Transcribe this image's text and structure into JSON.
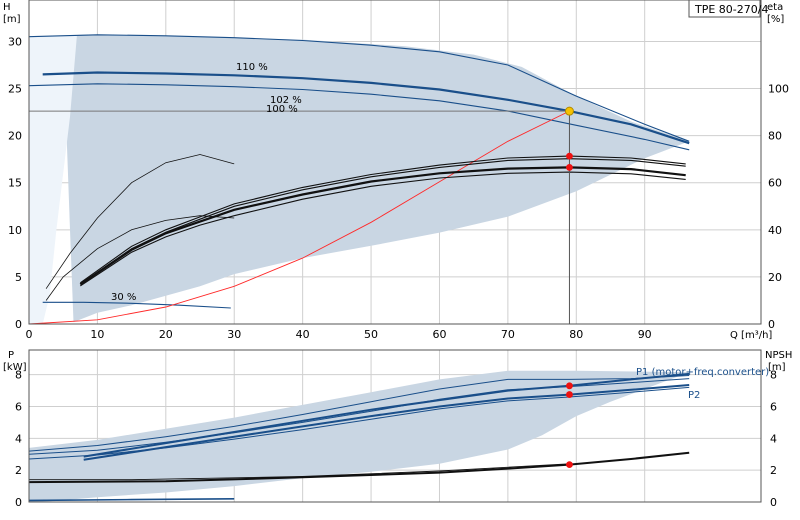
{
  "model_box": "TPE 80-270/4",
  "chart_data": [
    {
      "type": "line",
      "name": "head",
      "x_axis": {
        "label": "Q [m³/h]",
        "ticks": [
          0,
          10,
          20,
          30,
          40,
          50,
          60,
          70,
          80,
          90
        ],
        "range": [
          0,
          107
        ]
      },
      "y_axis_left": {
        "label_line1": "H",
        "label_line2": "[m]",
        "ticks": [
          0,
          5,
          10,
          15,
          20,
          25,
          30
        ],
        "range": [
          0,
          34.4
        ]
      },
      "y_axis_right": {
        "label_line1": "eta",
        "label_line2": "[%]",
        "ticks": [
          0,
          20,
          40,
          60,
          80,
          100
        ],
        "range": [
          0,
          137.6
        ]
      },
      "grid": true,
      "area_upper": [
        [
          0,
          30.5
        ],
        [
          8,
          30.7
        ],
        [
          20,
          30.6
        ],
        [
          40,
          30.2
        ],
        [
          55,
          29.5
        ],
        [
          65,
          28.6
        ],
        [
          72,
          27.3
        ],
        [
          80,
          24.2
        ],
        [
          88,
          21.5
        ],
        [
          96.5,
          19.4
        ]
      ],
      "area_lower": [
        [
          96.5,
          19.4
        ],
        [
          90,
          17.6
        ],
        [
          80,
          14.1
        ],
        [
          70,
          11.4
        ],
        [
          60,
          9.7
        ],
        [
          50,
          8.3
        ],
        [
          40,
          7.0
        ],
        [
          30,
          5.3
        ],
        [
          25,
          4.0
        ],
        [
          20,
          3.0
        ],
        [
          15,
          2.0
        ],
        [
          10,
          1.2
        ],
        [
          6.5,
          0.2
        ]
      ],
      "area_left": [
        [
          6.5,
          0.2
        ],
        [
          6,
          10
        ],
        [
          5.5,
          20
        ],
        [
          5,
          30.5
        ]
      ],
      "light_area": [
        [
          0,
          30.5
        ],
        [
          7,
          30.6
        ],
        [
          6,
          22
        ],
        [
          4,
          10
        ],
        [
          3,
          3
        ],
        [
          2,
          0
        ],
        [
          0,
          0
        ]
      ],
      "series": [
        {
          "name": "110 %",
          "kind": "speed",
          "points": [
            [
              0,
              30.5
            ],
            [
              10,
              30.7
            ],
            [
              20,
              30.6
            ],
            [
              30,
              30.4
            ],
            [
              40,
              30.1
            ],
            [
              50,
              29.6
            ],
            [
              60,
              28.9
            ],
            [
              70,
              27.5
            ],
            [
              80,
              24.2
            ],
            [
              90,
              21.2
            ],
            [
              96.5,
              19.4
            ]
          ]
        },
        {
          "name": "102 %",
          "kind": "speed",
          "bold": true,
          "points": [
            [
              2,
              26.5
            ],
            [
              10,
              26.7
            ],
            [
              20,
              26.6
            ],
            [
              30,
              26.4
            ],
            [
              40,
              26.1
            ],
            [
              50,
              25.6
            ],
            [
              60,
              24.9
            ],
            [
              70,
              23.8
            ],
            [
              79,
              22.6
            ],
            [
              88,
              21.2
            ],
            [
              96.5,
              19.2
            ]
          ]
        },
        {
          "name": "100 %",
          "kind": "speed",
          "points": [
            [
              0,
              25.3
            ],
            [
              10,
              25.5
            ],
            [
              20,
              25.4
            ],
            [
              30,
              25.2
            ],
            [
              40,
              24.9
            ],
            [
              50,
              24.4
            ],
            [
              60,
              23.7
            ],
            [
              70,
              22.6
            ],
            [
              80,
              21.1
            ],
            [
              90,
              19.6
            ],
            [
              96.5,
              18.5
            ]
          ]
        },
        {
          "name": "30 %",
          "kind": "speed",
          "points": [
            [
              2,
              2.3
            ],
            [
              8,
              2.3
            ],
            [
              15,
              2.2
            ],
            [
              22,
              2.0
            ],
            [
              29.5,
              1.7
            ]
          ]
        },
        {
          "name": "",
          "kind": "system",
          "points": [
            [
              0,
              0
            ],
            [
              10,
              0.45
            ],
            [
              20,
              1.8
            ],
            [
              30,
              4.0
            ],
            [
              40,
              7.0
            ],
            [
              50,
              10.8
            ],
            [
              60,
              15.1
            ],
            [
              70,
              19.4
            ],
            [
              79,
              22.6
            ]
          ]
        },
        {
          "name": "",
          "kind": "eta",
          "points": [
            [
              7.5,
              17.5
            ],
            [
              15,
              33
            ],
            [
              20,
              40
            ],
            [
              25,
              45.5
            ],
            [
              30,
              51
            ],
            [
              40,
              58
            ],
            [
              50,
              63.5
            ],
            [
              60,
              67.5
            ],
            [
              70,
              70.5
            ],
            [
              79,
              71.3
            ],
            [
              88,
              70.5
            ],
            [
              96,
              68
            ]
          ]
        },
        {
          "name": "",
          "kind": "eta",
          "points": [
            [
              7.5,
              17.0
            ],
            [
              15,
              32
            ],
            [
              20,
              39
            ],
            [
              25,
              44.5
            ],
            [
              30,
              50
            ],
            [
              40,
              57
            ],
            [
              50,
              62.5
            ],
            [
              60,
              66.5
            ],
            [
              70,
              69.5
            ],
            [
              79,
              70.2
            ],
            [
              88,
              69.5
            ],
            [
              96,
              67
            ]
          ]
        },
        {
          "name": "",
          "kind": "eta-bold",
          "points": [
            [
              7.5,
              16.8
            ],
            [
              15,
              31.5
            ],
            [
              20,
              38.5
            ],
            [
              25,
              43.5
            ],
            [
              30,
              48.5
            ],
            [
              40,
              55
            ],
            [
              50,
              60.5
            ],
            [
              60,
              64
            ],
            [
              70,
              66
            ],
            [
              79,
              66.5
            ],
            [
              88,
              65.8
            ],
            [
              96,
              63.2
            ]
          ]
        },
        {
          "name": "",
          "kind": "eta",
          "points": [
            [
              7.5,
              16.2
            ],
            [
              15,
              30.5
            ],
            [
              20,
              37
            ],
            [
              25,
              42
            ],
            [
              30,
              46
            ],
            [
              40,
              53
            ],
            [
              50,
              58.5
            ],
            [
              60,
              62
            ],
            [
              70,
              64
            ],
            [
              79,
              64.5
            ],
            [
              88,
              63.8
            ],
            [
              96,
              61.4
            ]
          ]
        },
        {
          "name": "",
          "kind": "eta-thin",
          "points": [
            [
              2.5,
              15
            ],
            [
              6,
              30
            ],
            [
              10,
              45
            ],
            [
              15,
              60
            ],
            [
              20,
              68.5
            ],
            [
              25,
              72
            ],
            [
              30,
              68
            ]
          ]
        },
        {
          "name": "",
          "kind": "eta-thin",
          "points": [
            [
              2.5,
              10
            ],
            [
              5,
              20
            ],
            [
              10,
              32
            ],
            [
              15,
              40
            ],
            [
              20,
              44
            ],
            [
              25,
              46
            ],
            [
              30,
              45
            ]
          ]
        }
      ],
      "operating_point": {
        "q": 79,
        "h": 22.6,
        "eta_points": [
          71.3,
          66.5
        ]
      },
      "labels": {
        "s110": "110 %",
        "s102": "102 %",
        "s100": "100 %",
        "s30": "30 %"
      }
    },
    {
      "type": "line",
      "name": "power",
      "x_axis": {
        "range": [
          0,
          107
        ]
      },
      "y_axis_left": {
        "label_line1": "P",
        "label_line2": "[kW]",
        "ticks": [
          0,
          2,
          4,
          6,
          8
        ],
        "range": [
          0,
          9.55
        ]
      },
      "y_axis_right": {
        "label_line1": "NPSH",
        "label_line2": "[m]",
        "ticks": [
          0,
          2,
          4,
          6,
          8
        ],
        "range": [
          0,
          9.55
        ]
      },
      "grid": true,
      "area_upper": [
        [
          0,
          3.4
        ],
        [
          10,
          3.9
        ],
        [
          20,
          4.6
        ],
        [
          30,
          5.3
        ],
        [
          40,
          6.1
        ],
        [
          50,
          6.9
        ],
        [
          60,
          7.7
        ],
        [
          70,
          8.25
        ],
        [
          80,
          8.25
        ],
        [
          96.5,
          8.15
        ]
      ],
      "area_lower": [
        [
          96.5,
          8.15
        ],
        [
          90,
          7.1
        ],
        [
          85,
          6.3
        ],
        [
          80,
          5.4
        ],
        [
          75,
          4.2
        ],
        [
          70,
          3.3
        ],
        [
          60,
          2.4
        ],
        [
          50,
          1.9
        ],
        [
          40,
          1.5
        ],
        [
          30,
          1.0
        ],
        [
          20,
          0.6
        ],
        [
          10,
          0.3
        ],
        [
          3,
          0.05
        ]
      ],
      "series": [
        {
          "name": "P1 (motor+freq.converter)",
          "kind": "p1",
          "bold": true,
          "points": [
            [
              8,
              2.85
            ],
            [
              20,
              3.7
            ],
            [
              30,
              4.4
            ],
            [
              40,
              5.1
            ],
            [
              50,
              5.8
            ],
            [
              60,
              6.4
            ],
            [
              70,
              7.0
            ],
            [
              79,
              7.3
            ],
            [
              88,
              7.7
            ],
            [
              96.5,
              8.05
            ]
          ]
        },
        {
          "name": "",
          "kind": "p1",
          "points": [
            [
              0,
              3.2
            ],
            [
              10,
              3.55
            ],
            [
              20,
              4.1
            ],
            [
              30,
              4.75
            ],
            [
              40,
              5.5
            ],
            [
              50,
              6.3
            ],
            [
              60,
              7.1
            ],
            [
              70,
              7.7
            ],
            [
              79,
              7.7
            ],
            [
              88,
              7.75
            ],
            [
              96.5,
              7.95
            ]
          ]
        },
        {
          "name": "",
          "kind": "p1",
          "points": [
            [
              0,
              3.0
            ],
            [
              10,
              3.25
            ],
            [
              20,
              3.75
            ],
            [
              30,
              4.35
            ],
            [
              40,
              5.0
            ],
            [
              50,
              5.7
            ],
            [
              60,
              6.45
            ],
            [
              70,
              7.05
            ],
            [
              79,
              7.25
            ],
            [
              88,
              7.5
            ],
            [
              96.5,
              7.75
            ]
          ]
        },
        {
          "name": "P2",
          "kind": "p2",
          "bold": true,
          "points": [
            [
              8,
              2.65
            ],
            [
              20,
              3.45
            ],
            [
              30,
              4.1
            ],
            [
              40,
              4.75
            ],
            [
              50,
              5.4
            ],
            [
              60,
              6.0
            ],
            [
              70,
              6.5
            ],
            [
              79,
              6.75
            ],
            [
              88,
              7.05
            ],
            [
              96.5,
              7.35
            ]
          ]
        },
        {
          "name": "",
          "kind": "p2",
          "points": [
            [
              0,
              2.7
            ],
            [
              10,
              2.95
            ],
            [
              20,
              3.4
            ],
            [
              30,
              3.95
            ],
            [
              40,
              4.55
            ],
            [
              50,
              5.2
            ],
            [
              60,
              5.85
            ],
            [
              70,
              6.35
            ],
            [
              79,
              6.6
            ],
            [
              88,
              6.9
            ],
            [
              96.5,
              7.2
            ]
          ]
        },
        {
          "name": "",
          "kind": "npsh",
          "bold": true,
          "points": [
            [
              0,
              1.25
            ],
            [
              20,
              1.3
            ],
            [
              40,
              1.55
            ],
            [
              60,
              1.85
            ],
            [
              70,
              2.1
            ],
            [
              79,
              2.35
            ],
            [
              88,
              2.7
            ],
            [
              96.5,
              3.1
            ]
          ]
        },
        {
          "name": "",
          "kind": "npsh",
          "points": [
            [
              0,
              1.4
            ],
            [
              15,
              1.4
            ],
            [
              40,
              1.6
            ],
            [
              60,
              1.95
            ],
            [
              79,
              2.4
            ]
          ]
        },
        {
          "name": "",
          "kind": "p30",
          "points": [
            [
              0,
              0.1
            ],
            [
              15,
              0.15
            ],
            [
              30,
              0.2
            ]
          ]
        }
      ],
      "operating_point": {
        "q": 79,
        "p": [
          7.3,
          6.75
        ],
        "npsh": 2.35
      },
      "labels": {
        "p1": "P1 (motor+freq.converter)",
        "p2": "P2"
      }
    }
  ],
  "colors": {
    "area": "#c9d6e3",
    "light_area": "#eef4fa",
    "curve": "#1a4f8a",
    "eta": "#111111",
    "system": "#ff2a2a",
    "point": "#ee1111",
    "op": "#f6c200",
    "grid": "#d0d0d0"
  }
}
